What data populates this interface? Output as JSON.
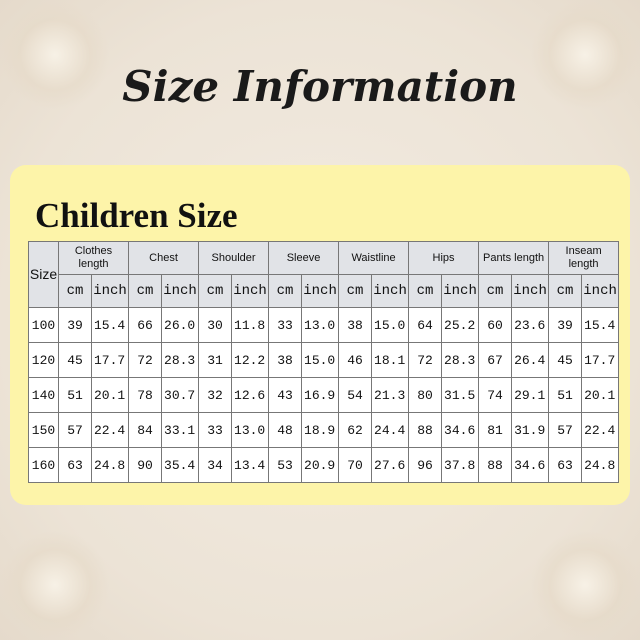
{
  "title": "Size Information",
  "subtitle": "Children Size",
  "table": {
    "size_header": "Size",
    "unit_cm": "cm",
    "unit_inch": "inch",
    "groups": [
      "Clothes length",
      "Chest",
      "Shoulder",
      "Sleeve",
      "Waistline",
      "Hips",
      "Pants length",
      "Inseam length"
    ],
    "rows": [
      {
        "size": "100",
        "values": [
          "39",
          "15.4",
          "66",
          "26.0",
          "30",
          "11.8",
          "33",
          "13.0",
          "38",
          "15.0",
          "64",
          "25.2",
          "60",
          "23.6",
          "39",
          "15.4"
        ]
      },
      {
        "size": "120",
        "values": [
          "45",
          "17.7",
          "72",
          "28.3",
          "31",
          "12.2",
          "38",
          "15.0",
          "46",
          "18.1",
          "72",
          "28.3",
          "67",
          "26.4",
          "45",
          "17.7"
        ]
      },
      {
        "size": "140",
        "values": [
          "51",
          "20.1",
          "78",
          "30.7",
          "32",
          "12.6",
          "43",
          "16.9",
          "54",
          "21.3",
          "80",
          "31.5",
          "74",
          "29.1",
          "51",
          "20.1"
        ]
      },
      {
        "size": "150",
        "values": [
          "57",
          "22.4",
          "84",
          "33.1",
          "33",
          "13.0",
          "48",
          "18.9",
          "62",
          "24.4",
          "88",
          "34.6",
          "81",
          "31.9",
          "57",
          "22.4"
        ]
      },
      {
        "size": "160",
        "values": [
          "63",
          "24.8",
          "90",
          "35.4",
          "34",
          "13.4",
          "53",
          "20.9",
          "70",
          "27.6",
          "96",
          "37.8",
          "88",
          "34.6",
          "63",
          "24.8"
        ]
      }
    ]
  },
  "colors": {
    "panel": "#fdf4a9",
    "header": "#e1e3e7",
    "background": "#ece3d6"
  }
}
